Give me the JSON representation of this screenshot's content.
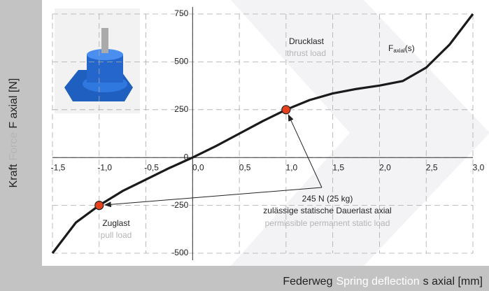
{
  "chart_data": {
    "type": "line",
    "y_label_parts": [
      "Kraft",
      "Force",
      "F axial [N]"
    ],
    "x_label_parts": [
      "Federweg",
      "Spring deflection",
      "s axial [mm]"
    ],
    "xlim": [
      -1.5,
      3.0
    ],
    "ylim": [
      -500,
      750
    ],
    "xticks": [
      {
        "value": -1.5,
        "label": "-1,5"
      },
      {
        "value": -1.0,
        "label": "-1,0"
      },
      {
        "value": -0.5,
        "label": "-0,5"
      },
      {
        "value": 0,
        "label": "0,0"
      },
      {
        "value": 0.5,
        "label": "0,5"
      },
      {
        "value": 1.0,
        "label": "1,0"
      },
      {
        "value": 1.5,
        "label": "1,5"
      },
      {
        "value": 2.0,
        "label": "2,0"
      },
      {
        "value": 2.5,
        "label": "2,5"
      },
      {
        "value": 3.0,
        "label": "3,0"
      }
    ],
    "yticks": [
      -500,
      -250,
      0,
      250,
      500,
      750
    ],
    "grid": true,
    "series": [
      {
        "name_parts": [
          "F",
          "axial",
          "(s)"
        ],
        "color": "#1a1a1a",
        "x": [
          -1.5,
          -1.25,
          -1.0,
          -0.75,
          -0.5,
          -0.25,
          0,
          0.25,
          0.5,
          0.75,
          1.0,
          1.25,
          1.5,
          1.75,
          2.0,
          2.25,
          2.5,
          2.75,
          3.0
        ],
        "values": [
          -500,
          -340,
          -250,
          -175,
          -115,
          -55,
          0,
          60,
          125,
          190,
          250,
          300,
          335,
          358,
          376,
          400,
          470,
          590,
          750
        ]
      }
    ],
    "markers": {
      "x": [
        -1.0,
        1.0
      ],
      "values": [
        -250,
        250
      ],
      "color": "#e8401c"
    },
    "annotations": {
      "thrust": [
        "Drucklast",
        "thrust load"
      ],
      "pull": [
        "Zuglast",
        "pull load"
      ],
      "load": [
        "245 N (25 kg)",
        "zulässige statische Dauerlast axial",
        "permissible permanent static load"
      ]
    }
  }
}
